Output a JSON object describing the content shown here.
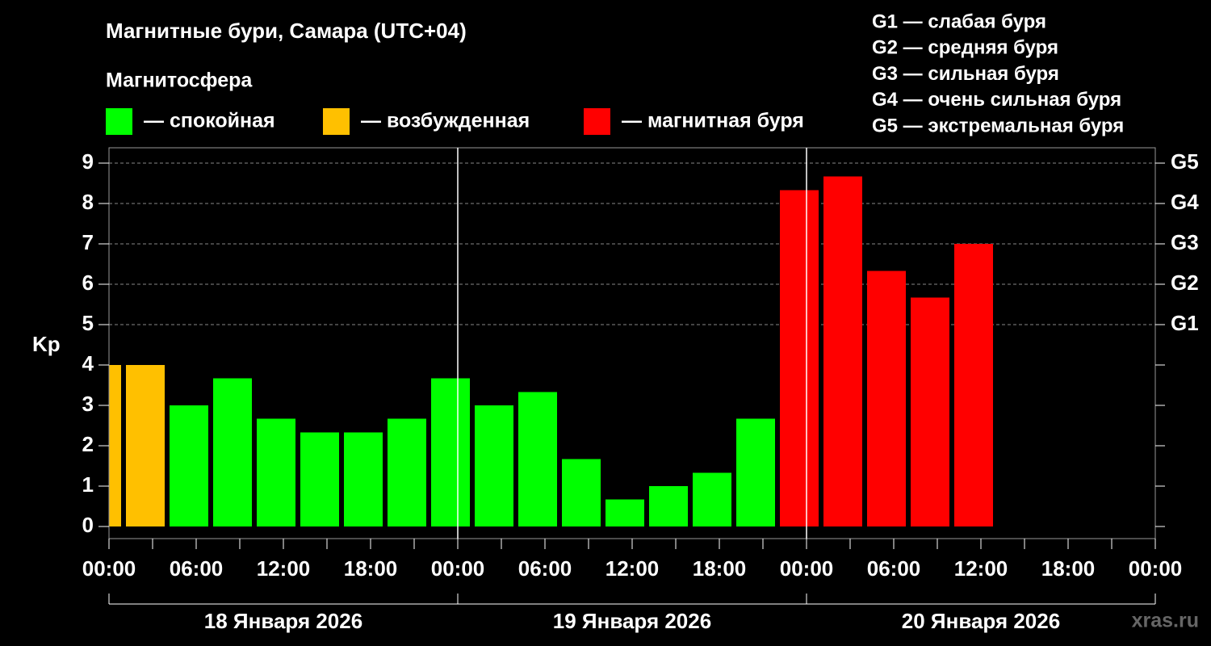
{
  "chart_data": {
    "type": "bar",
    "title": "Магнитные бури, Самара (UTC+04)",
    "legend_title": "Магнитосфера",
    "legend": [
      {
        "color": "#00ff00",
        "label": "— спокойная"
      },
      {
        "color": "#ffc000",
        "label": "— возбужденная"
      },
      {
        "color": "#ff0000",
        "label": "— магнитная буря"
      }
    ],
    "storm_scale": [
      "G1 — слабая буря",
      "G2 — средняя буря",
      "G3 — сильная буря",
      "G4 — очень сильная буря",
      "G5 — экстремальная буря"
    ],
    "y_label": "Kp",
    "x": [
      -2,
      1,
      4,
      7,
      10,
      13,
      16,
      19,
      22,
      25,
      28,
      31,
      34,
      37,
      40,
      43,
      46,
      49,
      52,
      55,
      58
    ],
    "values": [
      4.0,
      4.0,
      3.0,
      3.67,
      2.67,
      2.33,
      2.33,
      2.67,
      3.67,
      3.0,
      3.33,
      1.67,
      0.67,
      1.0,
      1.33,
      2.67,
      8.33,
      8.67,
      6.33,
      5.67,
      7.0
    ],
    "colors": [
      "#ffc000",
      "#ffc000",
      "#00ff00",
      "#00ff00",
      "#00ff00",
      "#00ff00",
      "#00ff00",
      "#00ff00",
      "#00ff00",
      "#00ff00",
      "#00ff00",
      "#00ff00",
      "#00ff00",
      "#00ff00",
      "#00ff00",
      "#00ff00",
      "#ff0000",
      "#ff0000",
      "#ff0000",
      "#ff0000",
      "#ff0000"
    ],
    "bar_hours": 3,
    "xlim": [
      0,
      72
    ],
    "xticks": [
      {
        "value": 0,
        "label": "00:00"
      },
      {
        "value": 6,
        "label": "06:00"
      },
      {
        "value": 12,
        "label": "12:00"
      },
      {
        "value": 18,
        "label": "18:00"
      },
      {
        "value": 24,
        "label": "00:00"
      },
      {
        "value": 30,
        "label": "06:00"
      },
      {
        "value": 36,
        "label": "12:00"
      },
      {
        "value": 42,
        "label": "18:00"
      },
      {
        "value": 48,
        "label": "00:00"
      },
      {
        "value": 54,
        "label": "06:00"
      },
      {
        "value": 60,
        "label": "12:00"
      },
      {
        "value": 66,
        "label": "18:00"
      },
      {
        "value": 72,
        "label": "00:00"
      }
    ],
    "xticks_minor": [
      3,
      9,
      15,
      21,
      27,
      33,
      39,
      45,
      51,
      57,
      63,
      69
    ],
    "days": [
      {
        "label": "18 Января 2026",
        "range": [
          0,
          24
        ]
      },
      {
        "label": "19 Января 2026",
        "range": [
          24,
          48
        ]
      },
      {
        "label": "20 Января 2026",
        "range": [
          48,
          72
        ]
      }
    ],
    "ylim": [
      -0.3,
      9.38
    ],
    "yticks": [
      0,
      1,
      2,
      3,
      4,
      5,
      6,
      7,
      8,
      9
    ],
    "y2ticks": [
      {
        "value": 5,
        "label": "G1"
      },
      {
        "value": 6,
        "label": "G2"
      },
      {
        "value": 7,
        "label": "G3"
      },
      {
        "value": 8,
        "label": "G4"
      },
      {
        "value": 9,
        "label": "G5"
      }
    ],
    "watermark": "xras.ru"
  }
}
